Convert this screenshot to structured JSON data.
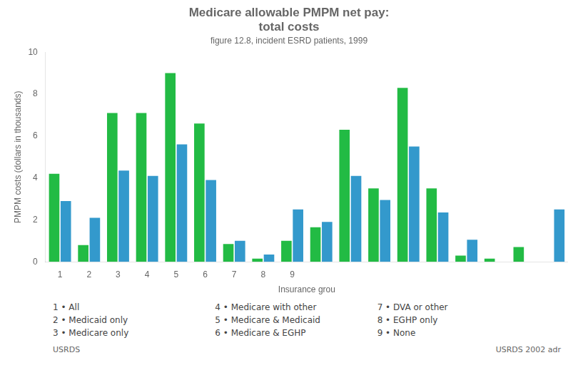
{
  "chart_data": {
    "type": "bar",
    "title": [
      "Medicare allowable PMPM net pay:",
      "total costs"
    ],
    "subtitle": "figure 12.8, incident ESRD patients, 1999",
    "xlabel": "Insurance grou",
    "ylabel": "PMPM costs (dollars in thousands)",
    "categories": [
      "1",
      "2",
      "3",
      "4",
      "5",
      "6",
      "7",
      "8",
      "9",
      null,
      null,
      null,
      null,
      null,
      null,
      null,
      null,
      null
    ],
    "series": [
      {
        "color": "#22bb44",
        "values": [
          4.2,
          0.8,
          7.1,
          7.1,
          9.0,
          6.6,
          0.85,
          0.15,
          1.0,
          1.65,
          6.3,
          3.5,
          8.3,
          3.5,
          0.3,
          0.15,
          0.7,
          0.0
        ]
      },
      {
        "color": "#3399cc",
        "values": [
          2.9,
          2.1,
          4.35,
          4.1,
          5.6,
          3.9,
          1.0,
          0.35,
          2.5,
          1.9,
          4.1,
          2.95,
          5.5,
          2.35,
          1.05,
          0.0,
          0.0,
          2.5
        ]
      }
    ],
    "ylim": [
      0,
      10
    ],
    "yticks": [
      0,
      2,
      4,
      6,
      8,
      10
    ],
    "grid": false,
    "annotations": [
      "1  •  All",
      "2  •  Medicaid only",
      "3  •  Medicare only",
      "4  •  Medicare with other",
      "5  •  Medicare & Medicaid",
      "6  •  Medicare & EGHP",
      "7  •  DVA or other",
      "8  •  EGHP only",
      "9  •  None",
      "USRDS",
      "USRDS 2002 adr"
    ]
  }
}
